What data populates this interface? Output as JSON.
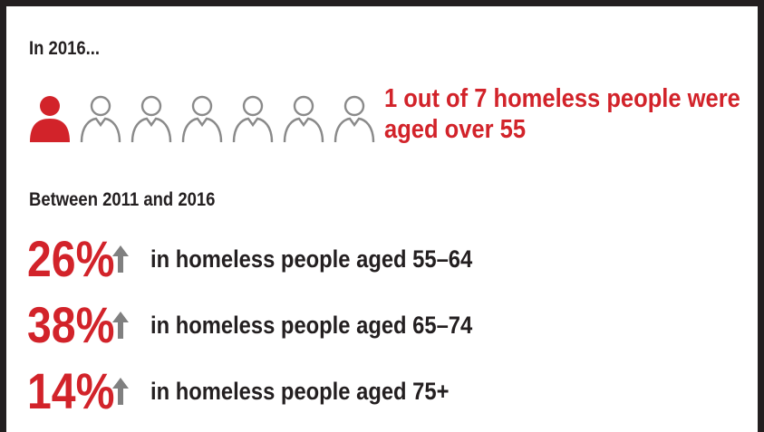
{
  "intro": "In 2016...",
  "people_icons": {
    "total": 7,
    "highlighted": 1,
    "highlight_color": "#d2232a",
    "outline_color": "#8a8a8a"
  },
  "headline": {
    "line1": "1 out of 7 homeless people were",
    "line2": "aged over 55"
  },
  "subheading": "Between 2011 and 2016",
  "stats": [
    {
      "percent": "26%",
      "icon": "up-arrow-icon",
      "text": "in homeless people aged 55–64"
    },
    {
      "percent": "38%",
      "icon": "up-arrow-icon",
      "text": "in homeless people aged 65–74"
    },
    {
      "percent": "14%",
      "icon": "up-arrow-icon",
      "text": "in homeless people aged 75+"
    }
  ],
  "colors": {
    "accent": "#d2232a",
    "text": "#231f20",
    "arrow": "#808080",
    "frame": "#231f20"
  }
}
